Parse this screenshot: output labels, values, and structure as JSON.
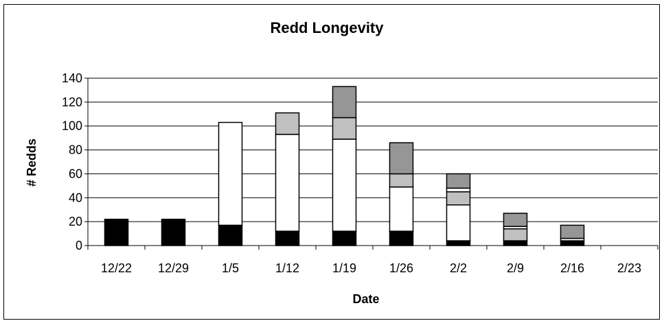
{
  "chart_data": {
    "type": "bar",
    "stacked": true,
    "title": "Redd Longevity",
    "xlabel": "Date",
    "ylabel": "# Redds",
    "categories": [
      "12/22",
      "12/29",
      "1/5",
      "1/12",
      "1/19",
      "1/26",
      "2/2",
      "2/9",
      "2/16",
      "2/23"
    ],
    "ylim": [
      0,
      140
    ],
    "yticks": [
      0,
      20,
      40,
      60,
      80,
      100,
      120,
      140
    ],
    "grid": true,
    "legend": "none",
    "series": [
      {
        "color": "#000000",
        "values": [
          22,
          22,
          17,
          12,
          12,
          12,
          4,
          4,
          4,
          0
        ]
      },
      {
        "color": "#ffffff",
        "values": [
          0,
          0,
          86,
          81,
          77,
          37,
          30,
          0,
          0,
          0
        ]
      },
      {
        "color": "#c0c0c0",
        "values": [
          0,
          0,
          0,
          18,
          18,
          11,
          11,
          10,
          0,
          0
        ]
      },
      {
        "color": "#ffffff",
        "values": [
          0,
          0,
          0,
          0,
          0,
          0,
          3,
          2,
          2,
          0
        ]
      },
      {
        "color": "#969696",
        "values": [
          0,
          0,
          0,
          0,
          26,
          26,
          12,
          11,
          11,
          0
        ]
      }
    ]
  }
}
